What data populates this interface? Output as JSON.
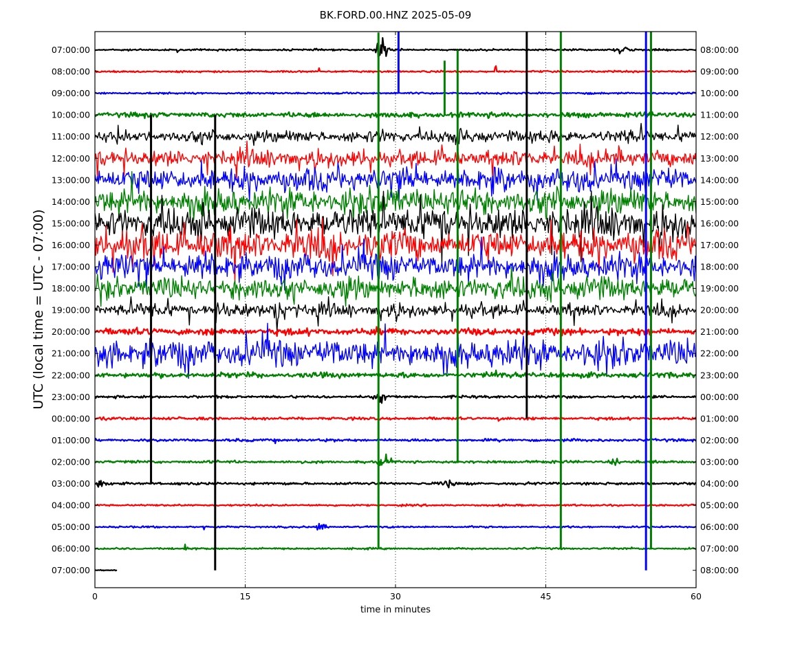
{
  "chart_data": {
    "type": "line",
    "title": "BK.FORD.00.HNZ 2025-05-09",
    "xlabel": "time in minutes",
    "ylabel": "UTC (local time = UTC - 07:00)",
    "xlim": [
      0,
      60
    ],
    "x_ticks": [
      0,
      15,
      30,
      45,
      60
    ],
    "x_gridlines": [
      15,
      30,
      45
    ],
    "grid": "vertical dotted lines at 15, 30, 45",
    "color_cycle": [
      "#000000",
      "#ff0000",
      "#0000ff",
      "#008000"
    ],
    "left_labels": [
      "07:00:00",
      "08:00:00",
      "09:00:00",
      "10:00:00",
      "11:00:00",
      "12:00:00",
      "13:00:00",
      "14:00:00",
      "15:00:00",
      "16:00:00",
      "17:00:00",
      "18:00:00",
      "19:00:00",
      "20:00:00",
      "21:00:00",
      "22:00:00",
      "23:00:00",
      "00:00:00",
      "01:00:00",
      "02:00:00",
      "03:00:00",
      "04:00:00",
      "05:00:00",
      "06:00:00",
      "07:00:00"
    ],
    "right_labels": [
      "08:00:00",
      "09:00:00",
      "10:00:00",
      "11:00:00",
      "12:00:00",
      "13:00:00",
      "14:00:00",
      "15:00:00",
      "16:00:00",
      "17:00:00",
      "18:00:00",
      "19:00:00",
      "20:00:00",
      "21:00:00",
      "22:00:00",
      "23:00:00",
      "00:00:00",
      "01:00:00",
      "02:00:00",
      "03:00:00",
      "04:00:00",
      "05:00:00",
      "06:00:00",
      "07:00:00",
      "08:00:00"
    ],
    "trace_noise": [
      2,
      2,
      2,
      6,
      14,
      18,
      26,
      30,
      34,
      34,
      30,
      26,
      14,
      8,
      32,
      6,
      3,
      3,
      3,
      3,
      3,
      2,
      2,
      2,
      1
    ],
    "trace_end_minute_last_row": 2.2,
    "events": [
      {
        "row": 0,
        "minute": 8.3,
        "amp": 10,
        "dur": 0.15
      },
      {
        "row": 0,
        "minute": 28.6,
        "amp": 30,
        "dur": 1.0
      },
      {
        "row": 0,
        "minute": 52.5,
        "amp": 8,
        "dur": 1.5
      },
      {
        "row": 1,
        "minute": 22.4,
        "amp": 18,
        "dur": 0.1
      },
      {
        "row": 1,
        "minute": 40.0,
        "amp": 20,
        "dur": 0.1
      },
      {
        "row": 2,
        "minute": 7.0,
        "amp": 6,
        "dur": 0.3
      },
      {
        "row": 4,
        "minute": 2.3,
        "amp": 60,
        "dur": 0.2
      },
      {
        "row": 5,
        "minute": 51.0,
        "amp": 60,
        "dur": 0.2
      },
      {
        "row": 12,
        "minute": 18.2,
        "amp": 70,
        "dur": 0.6
      },
      {
        "row": 15,
        "minute": 40.0,
        "amp": 18,
        "dur": 0.2
      },
      {
        "row": 16,
        "minute": 28.5,
        "amp": 14,
        "dur": 1.0
      },
      {
        "row": 17,
        "minute": 0.8,
        "amp": 12,
        "dur": 0.1
      },
      {
        "row": 17,
        "minute": 40.3,
        "amp": 14,
        "dur": 0.1
      },
      {
        "row": 18,
        "minute": 18.0,
        "amp": 14,
        "dur": 0.1
      },
      {
        "row": 19,
        "minute": 29.0,
        "amp": 14,
        "dur": 1.0
      },
      {
        "row": 19,
        "minute": 52.0,
        "amp": 8,
        "dur": 1.0
      },
      {
        "row": 20,
        "minute": 0.5,
        "amp": 14,
        "dur": 0.6
      },
      {
        "row": 20,
        "minute": 35.5,
        "amp": 14,
        "dur": 1.0
      },
      {
        "row": 22,
        "minute": 10.9,
        "amp": 14,
        "dur": 0.1
      },
      {
        "row": 22,
        "minute": 22.5,
        "amp": 10,
        "dur": 1.0
      },
      {
        "row": 23,
        "minute": 9.0,
        "amp": 10,
        "dur": 0.4
      },
      {
        "row": 23,
        "minute": 53.6,
        "amp": 10,
        "dur": 0.1
      }
    ],
    "long_spikes": [
      {
        "row": 2,
        "minute": 30.3,
        "color": "#0000ff",
        "up_rows": 3.0,
        "down_rows": 0
      },
      {
        "row": 3,
        "minute": 28.3,
        "color": "#008000",
        "up_rows": 3.8,
        "down_rows": 20
      },
      {
        "row": 7,
        "minute": 5.6,
        "color": "#000000",
        "up_rows": 4,
        "down_rows": 13
      },
      {
        "row": 7,
        "minute": 12.0,
        "color": "#000000",
        "up_rows": 4,
        "down_rows": 17
      },
      {
        "row": 7,
        "minute": 43.1,
        "color": "#000000",
        "up_rows": 8,
        "down_rows": 10
      },
      {
        "row": 3,
        "minute": 46.5,
        "color": "#008000",
        "up_rows": 4,
        "down_rows": 20
      },
      {
        "row": 2,
        "minute": 55.0,
        "color": "#0000ff",
        "up_rows": 3,
        "down_rows": 22
      },
      {
        "row": 3,
        "minute": 55.5,
        "color": "#008000",
        "up_rows": 4,
        "down_rows": 20
      },
      {
        "row": 3,
        "minute": 36.2,
        "color": "#008000",
        "up_rows": 3,
        "down_rows": 16
      },
      {
        "row": 3,
        "minute": 34.9,
        "color": "#008000",
        "up_rows": 2.5,
        "down_rows": 0
      }
    ]
  }
}
